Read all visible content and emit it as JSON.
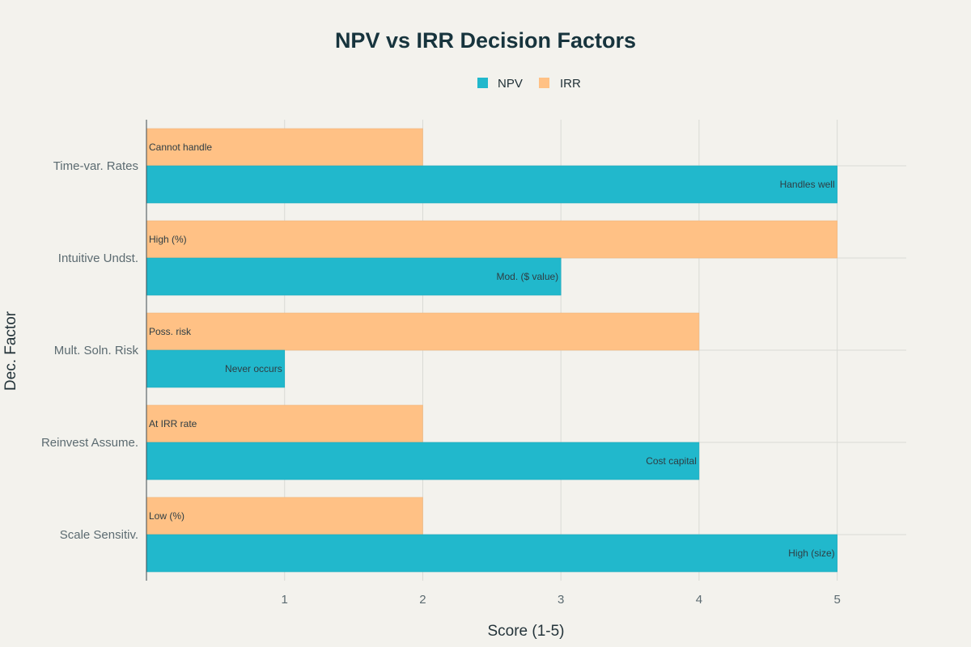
{
  "chart_data": {
    "type": "bar",
    "orientation": "horizontal",
    "title": "NPV vs IRR Decision Factors",
    "xlabel": "Score (1-5)",
    "ylabel": "Dec. Factor",
    "xlim": [
      0,
      5.5
    ],
    "xticks": [
      1,
      2,
      3,
      4,
      5
    ],
    "grid": true,
    "legend_position": "top-center",
    "categories": [
      "Time-var. Rates",
      "Intuitive Undst.",
      "Mult. Soln. Risk",
      "Reinvest Assume.",
      "Scale Sensitiv."
    ],
    "series": [
      {
        "name": "NPV",
        "color": "#21b8cc",
        "values": [
          5,
          3,
          1,
          4,
          5
        ],
        "labels": [
          "Handles well",
          "Mod. ($ value)",
          "Never occurs",
          "Cost capital",
          "High (size)"
        ]
      },
      {
        "name": "IRR",
        "color": "#ffc185",
        "values": [
          2,
          5,
          4,
          2,
          2
        ],
        "labels": [
          "Cannot handle",
          "High (%)",
          "Poss. risk",
          "At IRR rate",
          "Low (%)"
        ]
      }
    ]
  }
}
